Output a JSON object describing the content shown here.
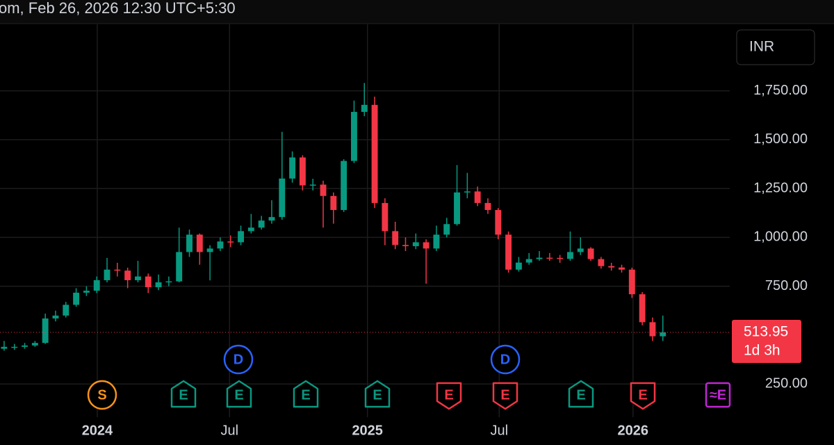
{
  "header": "om, Feb 26, 2026 12:30 UTC+5:30",
  "currency": "INR",
  "markers": [
    "S",
    "D",
    "D",
    "E",
    "E",
    "E",
    "E",
    "E",
    "E",
    "E",
    "E",
    "≈E"
  ],
  "chart_data": {
    "type": "candlestick",
    "up_color": "#089981",
    "down_color": "#f23645",
    "grid": true,
    "xlim": [
      -0.4,
      70.5
    ],
    "xticks": [
      {
        "value": 9.05,
        "label": "2024"
      },
      {
        "value": 21.9,
        "label": "Jul"
      },
      {
        "value": 35.3,
        "label": "2025"
      },
      {
        "value": 48.1,
        "label": "Jul"
      },
      {
        "value": 61.1,
        "label": "2026"
      }
    ],
    "ylim": [
      80,
      2090
    ],
    "yticks": [
      {
        "value": 250,
        "label": "250.00"
      },
      {
        "value": 750,
        "label": "750.00"
      },
      {
        "value": 1000,
        "label": "1,000.00"
      },
      {
        "value": 1250,
        "label": "1,250.00"
      },
      {
        "value": 1500,
        "label": "1,500.00"
      },
      {
        "value": 1750,
        "label": "1,750.00"
      }
    ],
    "open": [
      430,
      440,
      440,
      447,
      460,
      585,
      600,
      655,
      717,
      727,
      781,
      835,
      830,
      781,
      800,
      745,
      770,
      775,
      925,
      1014,
      925,
      943,
      979,
      975,
      1032,
      1050,
      1086,
      1104,
      1301,
      1409,
      1266,
      1270,
      1212,
      1140,
      1391,
      1642,
      1678,
      1176,
      1032,
      961,
      955,
      975,
      943,
      1014,
      1068,
      1230,
      1235,
      1176,
      1140,
      1014,
      835,
      871,
      889,
      896,
      895,
      890,
      925,
      943,
      889,
      853,
      846,
      835,
      709,
      566,
      494
    ],
    "high": [
      470,
      455,
      460,
      470,
      610,
      625,
      670,
      740,
      750,
      800,
      895,
      870,
      845,
      880,
      815,
      810,
      800,
      1050,
      1040,
      1020,
      960,
      1000,
      1010,
      1060,
      1120,
      1110,
      1190,
      1540,
      1440,
      1420,
      1300,
      1290,
      1230,
      1400,
      1700,
      1790,
      1720,
      1200,
      1080,
      1000,
      1020,
      990,
      1060,
      1100,
      1370,
      1330,
      1260,
      1200,
      1150,
      1030,
      900,
      920,
      930,
      920,
      910,
      1030,
      1000,
      950,
      900,
      870,
      860,
      845,
      720,
      590,
      600
    ],
    "low": [
      420,
      425,
      430,
      440,
      455,
      570,
      590,
      645,
      700,
      715,
      770,
      800,
      740,
      770,
      715,
      730,
      750,
      770,
      900,
      860,
      780,
      930,
      950,
      960,
      1020,
      1040,
      1070,
      1090,
      1280,
      1240,
      1240,
      1050,
      1070,
      1130,
      1380,
      1620,
      1150,
      960,
      940,
      930,
      940,
      763,
      930,
      1000,
      1060,
      1200,
      1160,
      1120,
      990,
      820,
      825,
      860,
      880,
      880,
      870,
      880,
      910,
      880,
      840,
      830,
      820,
      690,
      550,
      470,
      470
    ],
    "close": [
      440,
      440,
      447,
      460,
      585,
      600,
      655,
      717,
      727,
      781,
      835,
      830,
      781,
      800,
      745,
      770,
      775,
      925,
      1014,
      925,
      943,
      979,
      975,
      1032,
      1050,
      1086,
      1104,
      1301,
      1409,
      1266,
      1270,
      1212,
      1140,
      1391,
      1642,
      1678,
      1176,
      1032,
      961,
      955,
      975,
      943,
      1014,
      1068,
      1230,
      1235,
      1176,
      1140,
      1014,
      835,
      871,
      889,
      896,
      895,
      890,
      925,
      943,
      889,
      853,
      846,
      835,
      709,
      566,
      494,
      513.95
    ],
    "current_price": 513.95,
    "countdown": "1d 3h"
  }
}
